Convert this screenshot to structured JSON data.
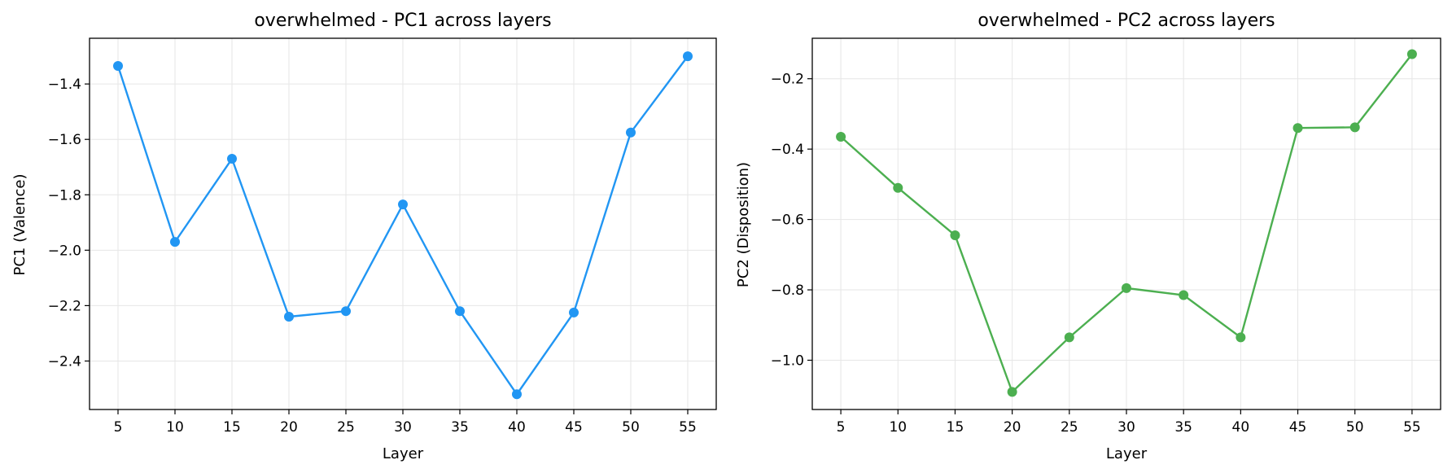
{
  "chart_data": [
    {
      "type": "line",
      "title": "overwhelmed - PC1 across layers",
      "xlabel": "Layer",
      "ylabel": "PC1 (Valence)",
      "x": [
        5,
        10,
        15,
        20,
        25,
        30,
        35,
        40,
        45,
        50,
        55
      ],
      "xticks": [
        "5",
        "10",
        "15",
        "20",
        "25",
        "30",
        "35",
        "40",
        "45",
        "50",
        "55"
      ],
      "xlim": [
        2.5,
        57.5
      ],
      "ylim": [
        -2.575,
        -1.235
      ],
      "yticks": [
        -2.4,
        -2.2,
        -2.0,
        -1.8,
        -1.6,
        -1.4
      ],
      "ytick_labels": [
        "−2.4",
        "−2.2",
        "−2.0",
        "−1.8",
        "−1.6",
        "−1.4"
      ],
      "grid": true,
      "series": [
        {
          "color": "#2196F3",
          "values": [
            -1.335,
            -1.97,
            -1.67,
            -2.24,
            -2.22,
            -1.835,
            -2.22,
            -2.52,
            -2.225,
            -1.575,
            -1.3
          ]
        }
      ]
    },
    {
      "type": "line",
      "title": "overwhelmed - PC2 across layers",
      "xlabel": "Layer",
      "ylabel": "PC2 (Disposition)",
      "x": [
        5,
        10,
        15,
        20,
        25,
        30,
        35,
        40,
        45,
        50,
        55
      ],
      "xticks": [
        "5",
        "10",
        "15",
        "20",
        "25",
        "30",
        "35",
        "40",
        "45",
        "50",
        "55"
      ],
      "xlim": [
        2.5,
        57.5
      ],
      "ylim": [
        -1.14,
        -0.085
      ],
      "yticks": [
        -1.0,
        -0.8,
        -0.6,
        -0.4,
        -0.2
      ],
      "ytick_labels": [
        "−1.0",
        "−0.8",
        "−0.6",
        "−0.4",
        "−0.2"
      ],
      "grid": true,
      "series": [
        {
          "color": "#4CAF50",
          "values": [
            -0.365,
            -0.51,
            -0.645,
            -1.09,
            -0.935,
            -0.795,
            -0.815,
            -0.935,
            -0.34,
            -0.338,
            -0.13
          ]
        }
      ]
    }
  ]
}
